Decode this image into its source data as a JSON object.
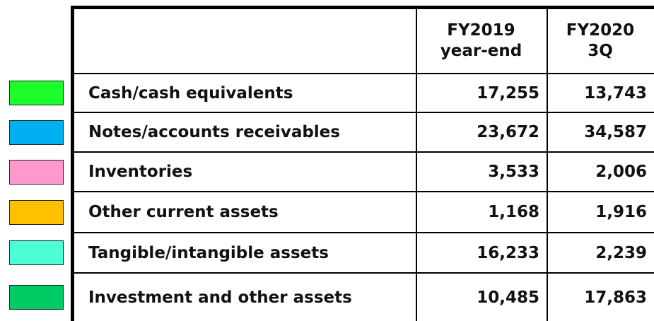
{
  "table": {
    "columns": [
      [
        "FY2019",
        "year-end"
      ],
      [
        "FY2020",
        "3Q"
      ]
    ],
    "rows": [
      {
        "label": "Cash/cash equivalents",
        "color": "#1dff2a",
        "values": [
          "17,255",
          "13,743"
        ]
      },
      {
        "label": "Notes/accounts receivables",
        "color": "#00b0f0",
        "values": [
          "23,672",
          "34,587"
        ]
      },
      {
        "label": "Inventories",
        "color": "#ff99cc",
        "values": [
          "3,533",
          "2,006"
        ]
      },
      {
        "label": "Other current assets",
        "color": "#ffc000",
        "values": [
          "1,168",
          "1,916"
        ]
      },
      {
        "label": "Tangible/intangible assets",
        "color": "#4dffd6",
        "values": [
          "16,233",
          "2,239"
        ]
      },
      {
        "label": "Investment and other assets",
        "color": "#00cc66",
        "values": [
          "10,485",
          "17,863"
        ]
      }
    ]
  }
}
